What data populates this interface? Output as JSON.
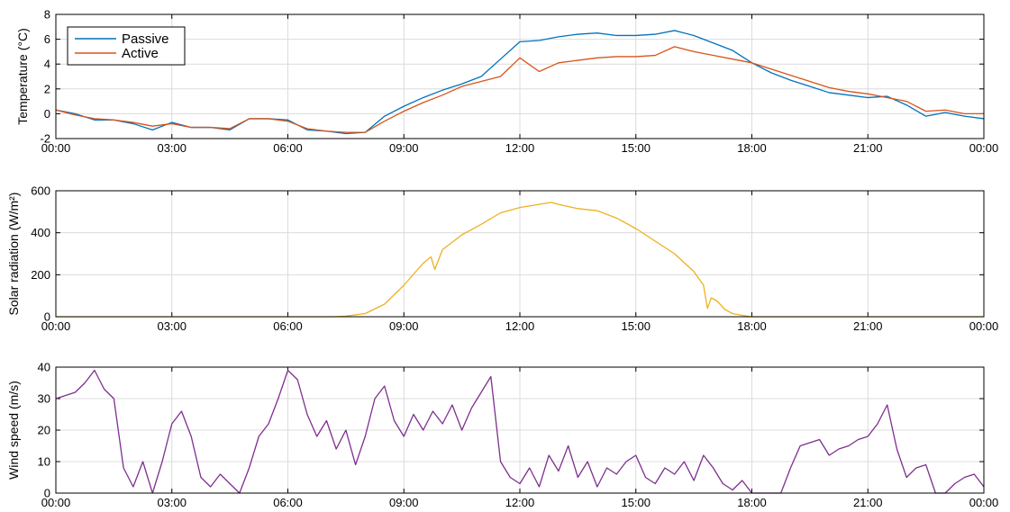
{
  "chart_data": [
    {
      "type": "line",
      "title": "",
      "xlabel": "",
      "ylabel": "Temperature (°C)",
      "x_ticks": [
        "00:00",
        "03:00",
        "06:00",
        "09:00",
        "12:00",
        "15:00",
        "18:00",
        "21:00",
        "00:00"
      ],
      "y_ticks": [
        "-2",
        "0",
        "2",
        "4",
        "6",
        "8"
      ],
      "ylim": [
        -2,
        8
      ],
      "xlim_hours": [
        0,
        24
      ],
      "grid": true,
      "legend": {
        "placement": "top-left",
        "entries": [
          "Passive",
          "Active"
        ]
      },
      "x": [
        0,
        0.5,
        1,
        1.5,
        2,
        2.5,
        3,
        3.5,
        4,
        4.5,
        5,
        5.5,
        6,
        6.5,
        7,
        7.5,
        8,
        8.5,
        9,
        9.5,
        10,
        10.5,
        11,
        11.5,
        12,
        12.5,
        13,
        13.5,
        14,
        14.5,
        15,
        15.5,
        16,
        16.5,
        17,
        17.5,
        18,
        18.5,
        19,
        19.5,
        20,
        20.5,
        21,
        21.5,
        22,
        22.5,
        23,
        23.5,
        24
      ],
      "series": [
        {
          "name": "Passive",
          "color": "#0072BD",
          "values": [
            0.3,
            0.0,
            -0.5,
            -0.5,
            -0.8,
            -1.3,
            -0.7,
            -1.1,
            -1.1,
            -1.3,
            -0.4,
            -0.4,
            -0.5,
            -1.3,
            -1.4,
            -1.6,
            -1.5,
            -0.2,
            0.6,
            1.3,
            1.9,
            2.4,
            3.0,
            4.4,
            5.8,
            5.9,
            6.2,
            6.4,
            6.5,
            6.3,
            6.3,
            6.4,
            6.7,
            6.3,
            5.7,
            5.1,
            4.1,
            3.3,
            2.7,
            2.2,
            1.7,
            1.5,
            1.3,
            1.4,
            0.7,
            -0.2,
            0.1,
            -0.2,
            -0.4
          ]
        },
        {
          "name": "Active",
          "color": "#D95319",
          "values": [
            0.3,
            -0.1,
            -0.4,
            -0.5,
            -0.7,
            -1.0,
            -0.8,
            -1.1,
            -1.1,
            -1.2,
            -0.4,
            -0.4,
            -0.6,
            -1.2,
            -1.4,
            -1.5,
            -1.5,
            -0.6,
            0.2,
            0.9,
            1.5,
            2.2,
            2.6,
            3.0,
            4.5,
            3.4,
            4.1,
            4.3,
            4.5,
            4.6,
            4.6,
            4.7,
            5.4,
            5.0,
            4.7,
            4.4,
            4.1,
            3.6,
            3.1,
            2.6,
            2.1,
            1.8,
            1.6,
            1.3,
            1.0,
            0.2,
            0.3,
            0.0,
            0.0
          ]
        }
      ]
    },
    {
      "type": "line",
      "title": "",
      "xlabel": "",
      "ylabel": "Solar radiation (W/m²)",
      "x_ticks": [
        "00:00",
        "03:00",
        "06:00",
        "09:00",
        "12:00",
        "15:00",
        "18:00",
        "21:00",
        "00:00"
      ],
      "y_ticks": [
        "0",
        "200",
        "400",
        "600"
      ],
      "ylim": [
        0,
        600
      ],
      "xlim_hours": [
        0,
        24
      ],
      "grid": true,
      "x": [
        0,
        6,
        7.2,
        7.5,
        8.0,
        8.5,
        9.0,
        9.5,
        9.7,
        9.8,
        10.0,
        10.5,
        11.0,
        11.5,
        12.0,
        12.5,
        12.8,
        13.0,
        13.5,
        14.0,
        14.5,
        15.0,
        15.5,
        16.0,
        16.5,
        16.75,
        16.85,
        16.95,
        17.1,
        17.3,
        17.5,
        17.8,
        18.0,
        24
      ],
      "series": [
        {
          "name": "",
          "color": "#EDB120",
          "values": [
            0,
            0,
            0,
            3,
            15,
            60,
            150,
            255,
            285,
            225,
            320,
            390,
            440,
            495,
            520,
            535,
            545,
            535,
            515,
            505,
            470,
            420,
            360,
            300,
            215,
            150,
            40,
            90,
            75,
            35,
            15,
            5,
            0,
            0
          ]
        }
      ]
    },
    {
      "type": "line",
      "title": "",
      "xlabel": "",
      "ylabel": "Wind speed (m/s)",
      "x_ticks": [
        "00:00",
        "03:00",
        "06:00",
        "09:00",
        "12:00",
        "15:00",
        "18:00",
        "21:00",
        "00:00"
      ],
      "y_ticks": [
        "0",
        "10",
        "20",
        "30",
        "40"
      ],
      "ylim": [
        0,
        40
      ],
      "xlim_hours": [
        0,
        24
      ],
      "grid": true,
      "x": [
        0,
        0.25,
        0.5,
        0.75,
        1.0,
        1.25,
        1.5,
        1.75,
        2.0,
        2.25,
        2.5,
        2.75,
        3.0,
        3.25,
        3.5,
        3.75,
        4.0,
        4.25,
        4.5,
        4.75,
        5.0,
        5.25,
        5.5,
        5.75,
        6.0,
        6.25,
        6.5,
        6.75,
        7.0,
        7.25,
        7.5,
        7.75,
        8.0,
        8.25,
        8.5,
        8.75,
        9.0,
        9.25,
        9.5,
        9.75,
        10.0,
        10.25,
        10.5,
        10.75,
        11.0,
        11.25,
        11.5,
        11.75,
        12.0,
        12.25,
        12.5,
        12.75,
        13.0,
        13.25,
        13.5,
        13.75,
        14.0,
        14.25,
        14.5,
        14.75,
        15.0,
        15.25,
        15.5,
        15.75,
        16.0,
        16.25,
        16.5,
        16.75,
        17.0,
        17.25,
        17.5,
        17.75,
        18.0,
        18.25,
        18.5,
        18.75,
        19.0,
        19.25,
        19.5,
        19.75,
        20.0,
        20.25,
        20.5,
        20.75,
        21.0,
        21.25,
        21.5,
        21.75,
        22.0,
        22.25,
        22.5,
        22.75,
        23.0,
        23.25,
        23.5,
        23.75,
        24.0
      ],
      "series": [
        {
          "name": "",
          "color": "#7E2F8E",
          "values": [
            30,
            31,
            32,
            35,
            39,
            33,
            30,
            8,
            2,
            10,
            0,
            10,
            22,
            26,
            18,
            5,
            2,
            6,
            3,
            0,
            8,
            18,
            22,
            30,
            39,
            36,
            25,
            18,
            23,
            14,
            20,
            9,
            18,
            30,
            34,
            23,
            18,
            25,
            20,
            26,
            22,
            28,
            20,
            27,
            32,
            37,
            10,
            5,
            3,
            8,
            2,
            12,
            7,
            15,
            5,
            10,
            2,
            8,
            6,
            10,
            12,
            5,
            3,
            8,
            6,
            10,
            4,
            12,
            8,
            3,
            1,
            4,
            0,
            0,
            0,
            0,
            8,
            15,
            16,
            17,
            12,
            14,
            15,
            17,
            18,
            22,
            28,
            14,
            5,
            8,
            9,
            0,
            0,
            3,
            5,
            6,
            2
          ]
        }
      ]
    }
  ]
}
